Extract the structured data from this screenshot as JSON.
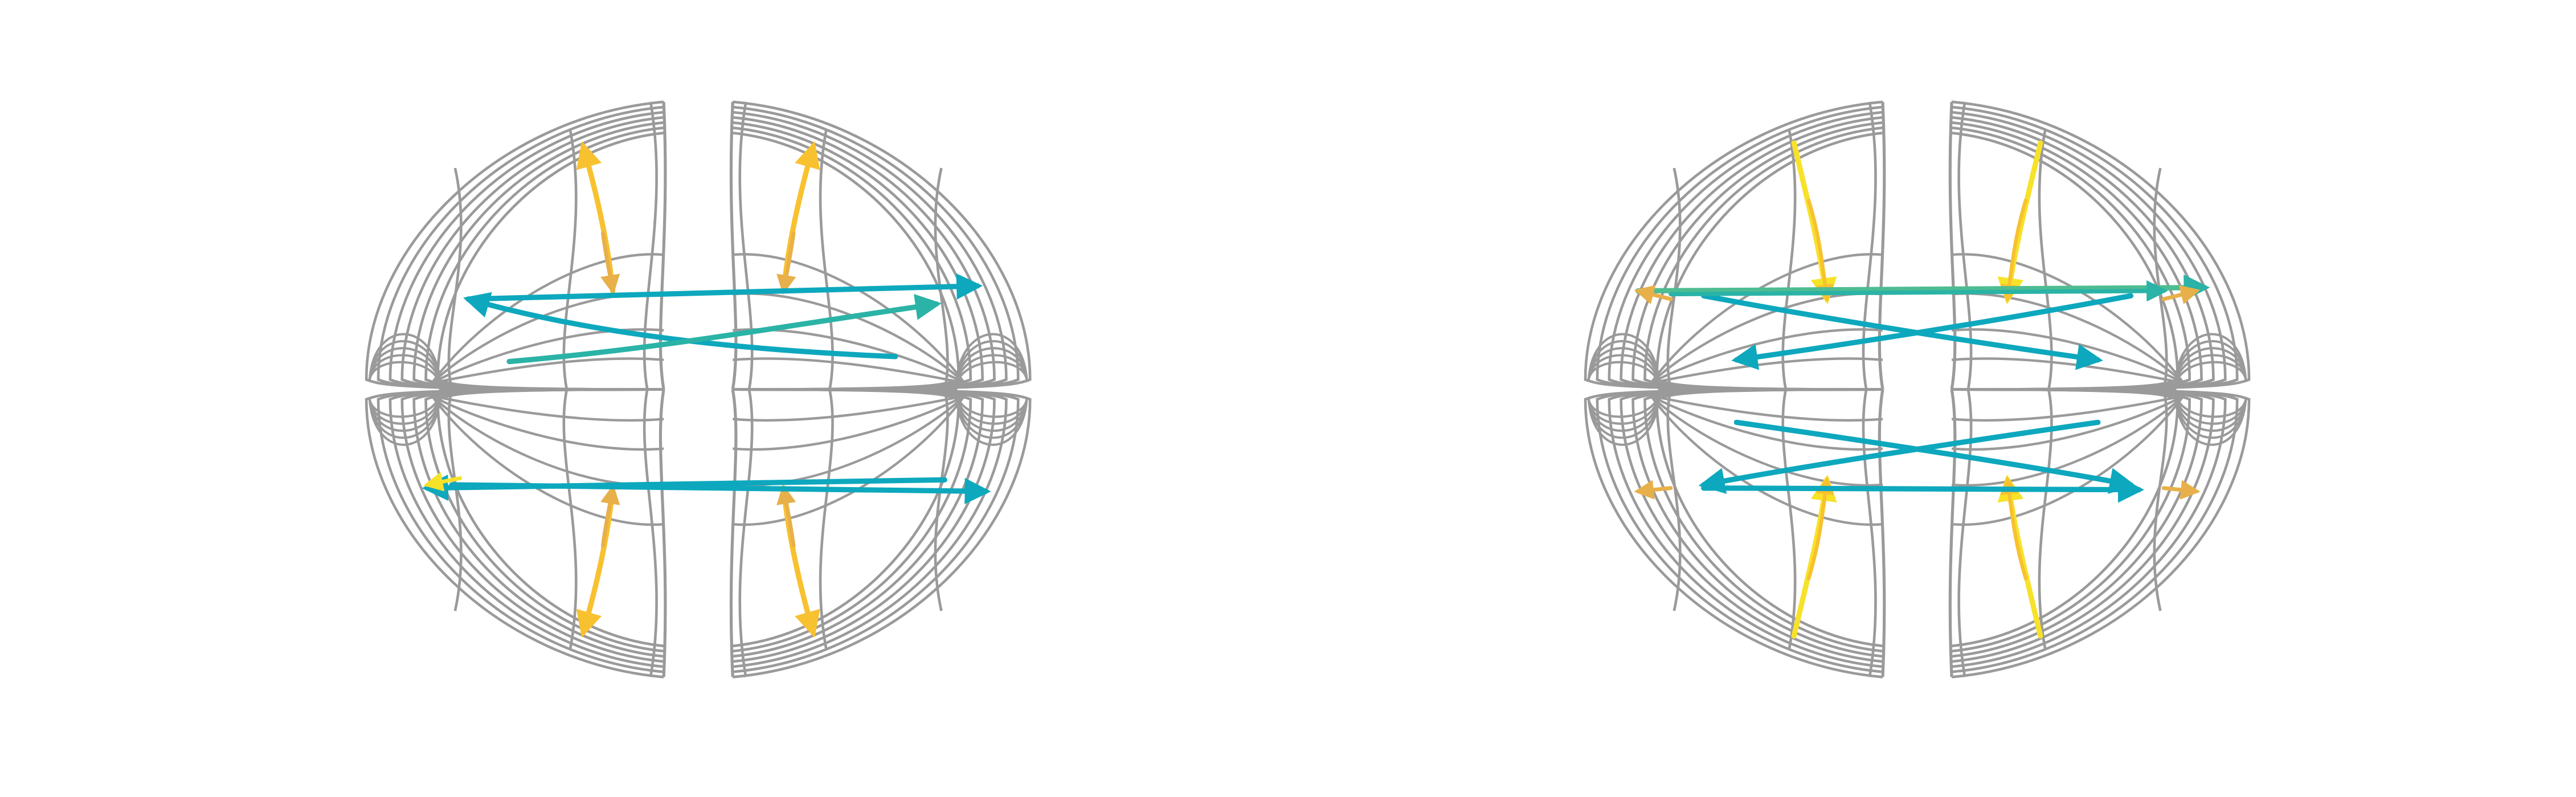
{
  "colors": {
    "grid": "#9a9a9a",
    "cyan": "#0da8bd",
    "teal": "#2ab3a6",
    "green": "#4ebc92",
    "yellow": "#f7e22a",
    "gold": "#f8c12f",
    "amber": "#e8b04a"
  },
  "panels": [
    {
      "id": "left",
      "arrows": [
        {
          "kind": "vertical",
          "from": "inner-equator",
          "to": "pole",
          "color": "gold"
        },
        {
          "kind": "horizontal-cross",
          "from": "inner",
          "to": "outer",
          "color": "cyan"
        }
      ]
    },
    {
      "id": "right",
      "arrows": [
        {
          "kind": "vertical",
          "from": "pole",
          "to": "inner-equator",
          "color": "yellow"
        },
        {
          "kind": "horizontal-cross",
          "from": "inner",
          "to": "outer",
          "color": "cyan"
        }
      ]
    }
  ]
}
